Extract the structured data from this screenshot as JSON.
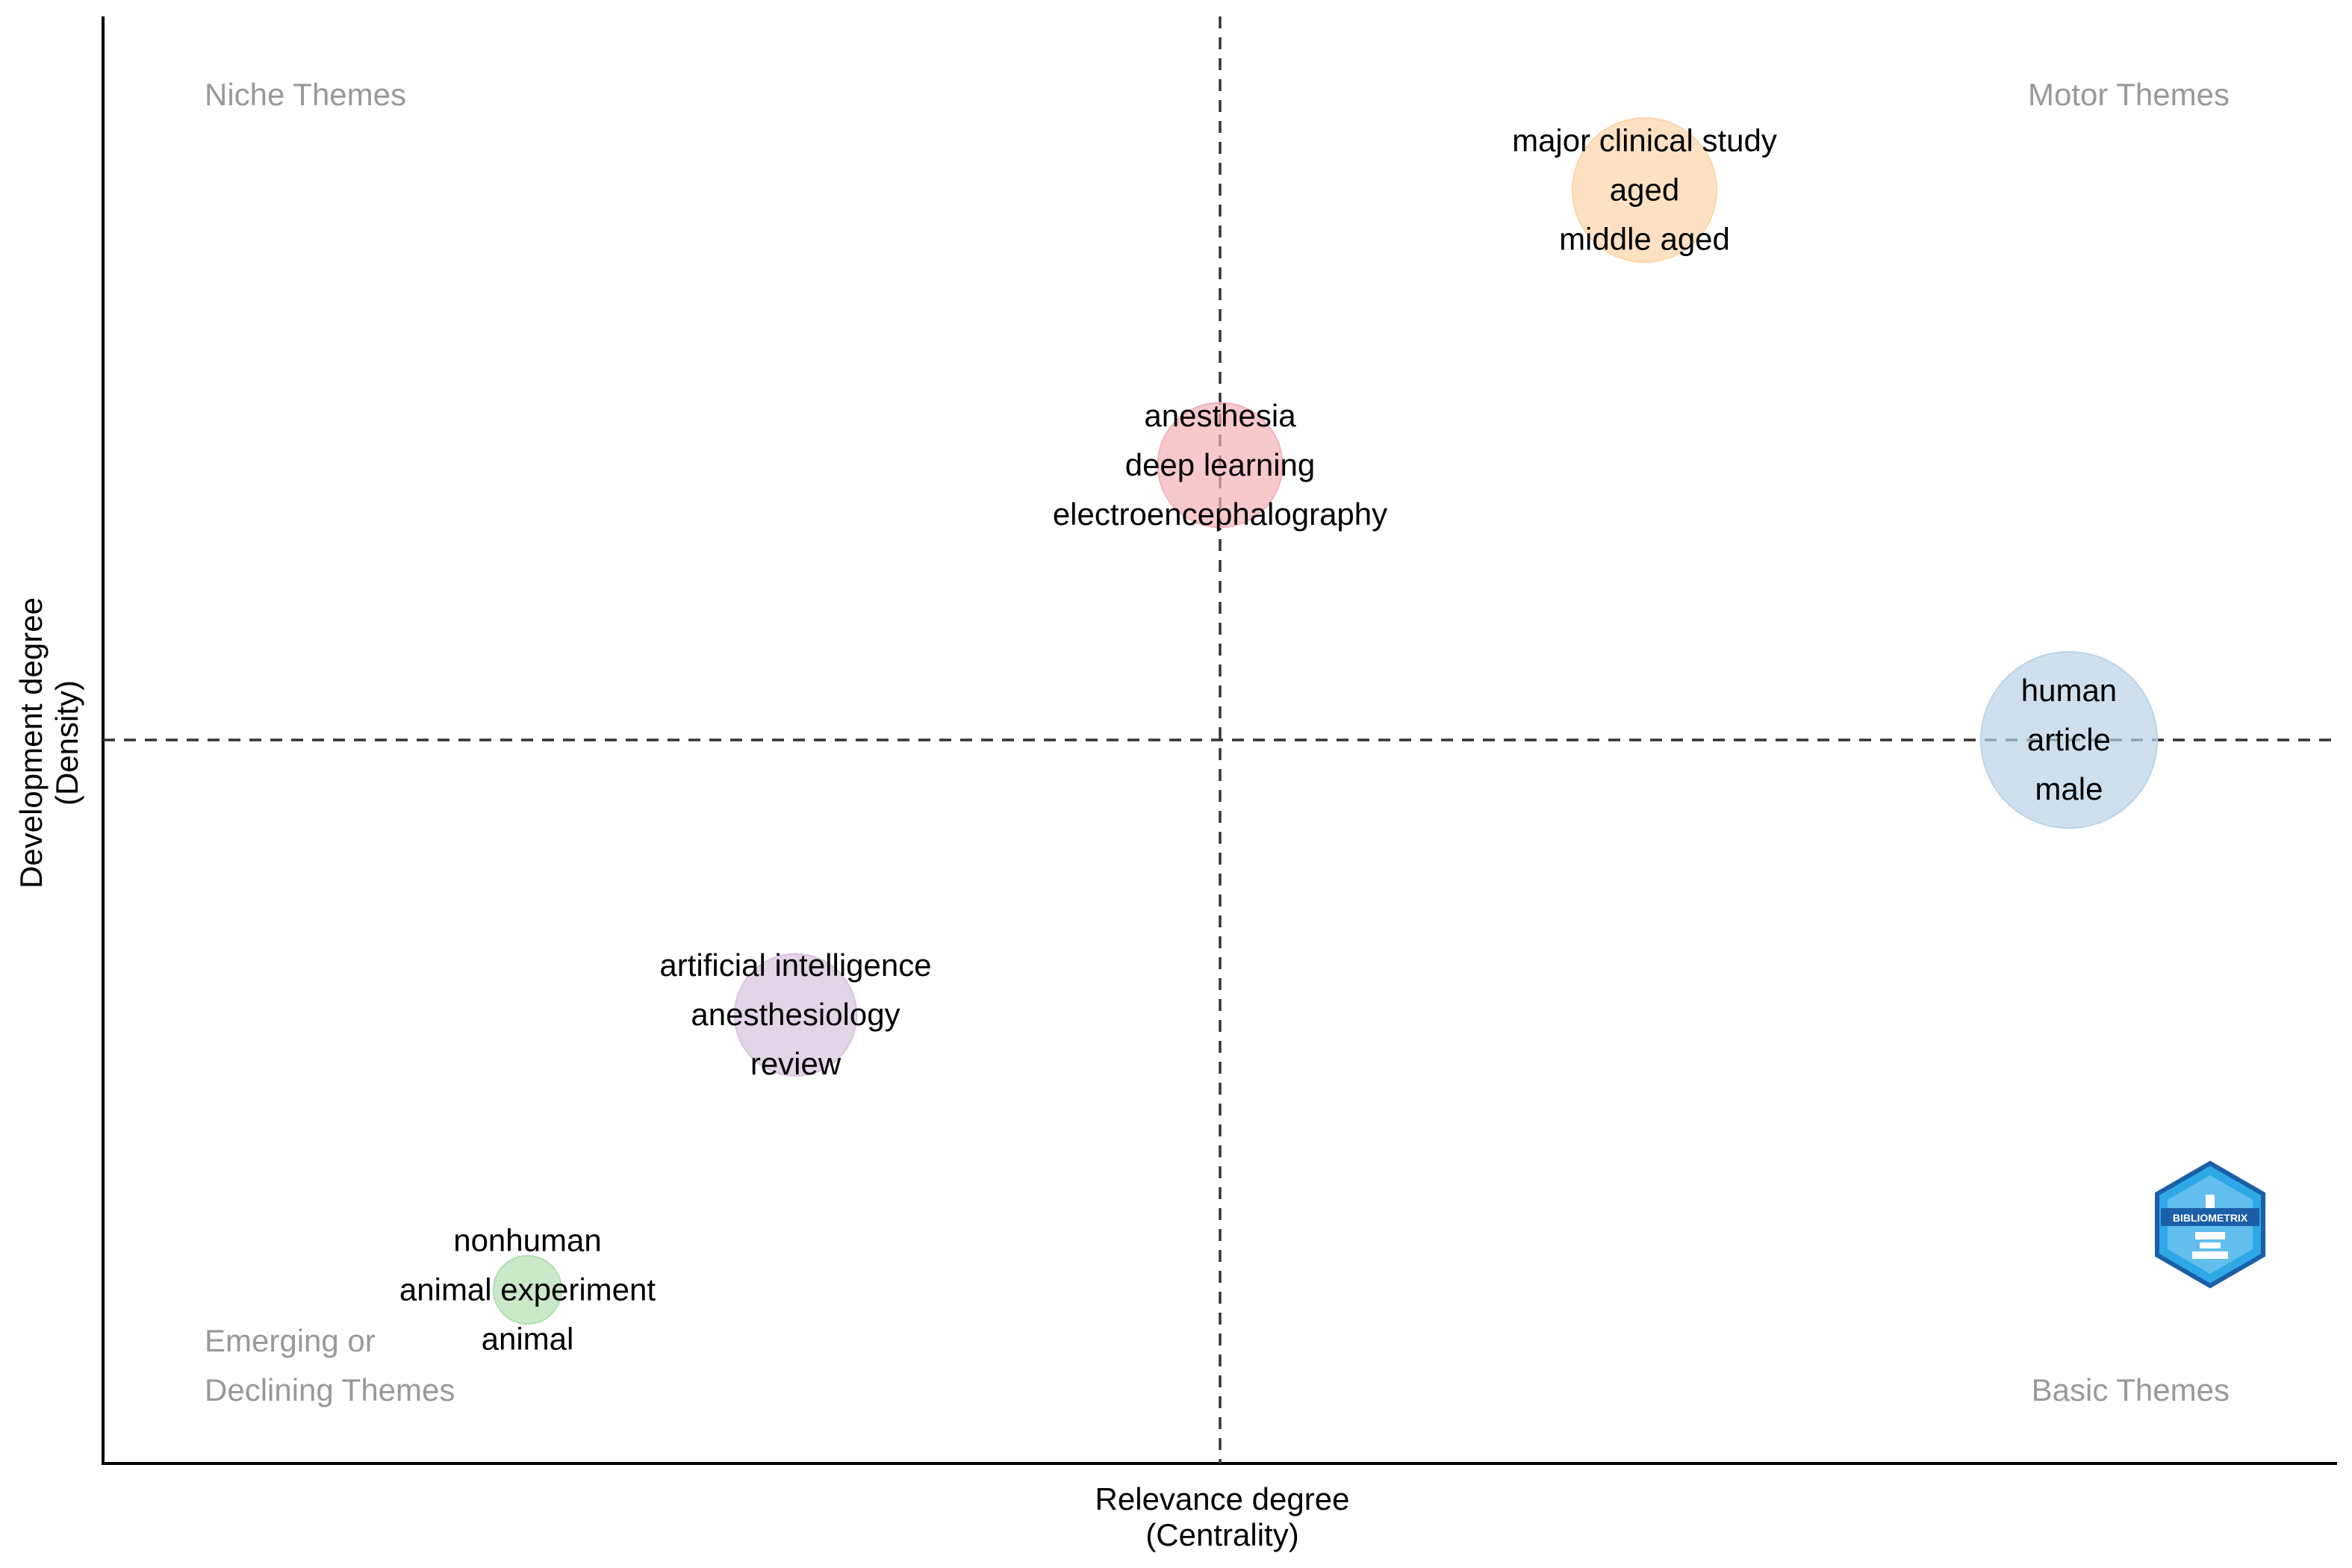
{
  "chart_data": {
    "type": "scatter",
    "title": "",
    "xlabel": [
      "Relevance degree",
      "(Centrality)"
    ],
    "ylabel": [
      "Development degree",
      "(Density)"
    ],
    "xlim": [
      0,
      1
    ],
    "ylim": [
      0,
      1
    ],
    "x_tick_labels": [],
    "y_tick_labels": [],
    "grid": false,
    "reference_lines": {
      "x": 0.5,
      "y": 0.5
    },
    "quadrant_labels": {
      "top_left": "Niche Themes",
      "top_right": "Motor Themes",
      "bottom_left": [
        "Emerging or",
        "Declining Themes"
      ],
      "bottom_right": "Basic Themes"
    },
    "clusters": [
      {
        "x": 0.19,
        "y": 0.12,
        "size": 0.15,
        "color": "#b2dfb0",
        "labels": [
          "nonhuman",
          "animal experiment",
          "animal"
        ]
      },
      {
        "x": 0.31,
        "y": 0.31,
        "size": 0.48,
        "color": "#d9c2de",
        "labels": [
          "artificial intelligence",
          "anesthesiology",
          "review"
        ]
      },
      {
        "x": 0.5,
        "y": 0.69,
        "size": 0.5,
        "color": "#f3b2b6",
        "labels": [
          "anesthesia",
          "deep learning",
          "electroencephalography"
        ]
      },
      {
        "x": 0.69,
        "y": 0.88,
        "size": 0.67,
        "color": "#fdd4a8",
        "labels": [
          "major clinical study",
          "aged",
          "middle aged"
        ]
      },
      {
        "x": 0.88,
        "y": 0.5,
        "size": 1.0,
        "color": "#b9d3e6",
        "labels": [
          "human",
          "article",
          "male"
        ]
      }
    ],
    "logo": {
      "text": "BIBLIOMETRIX"
    }
  }
}
